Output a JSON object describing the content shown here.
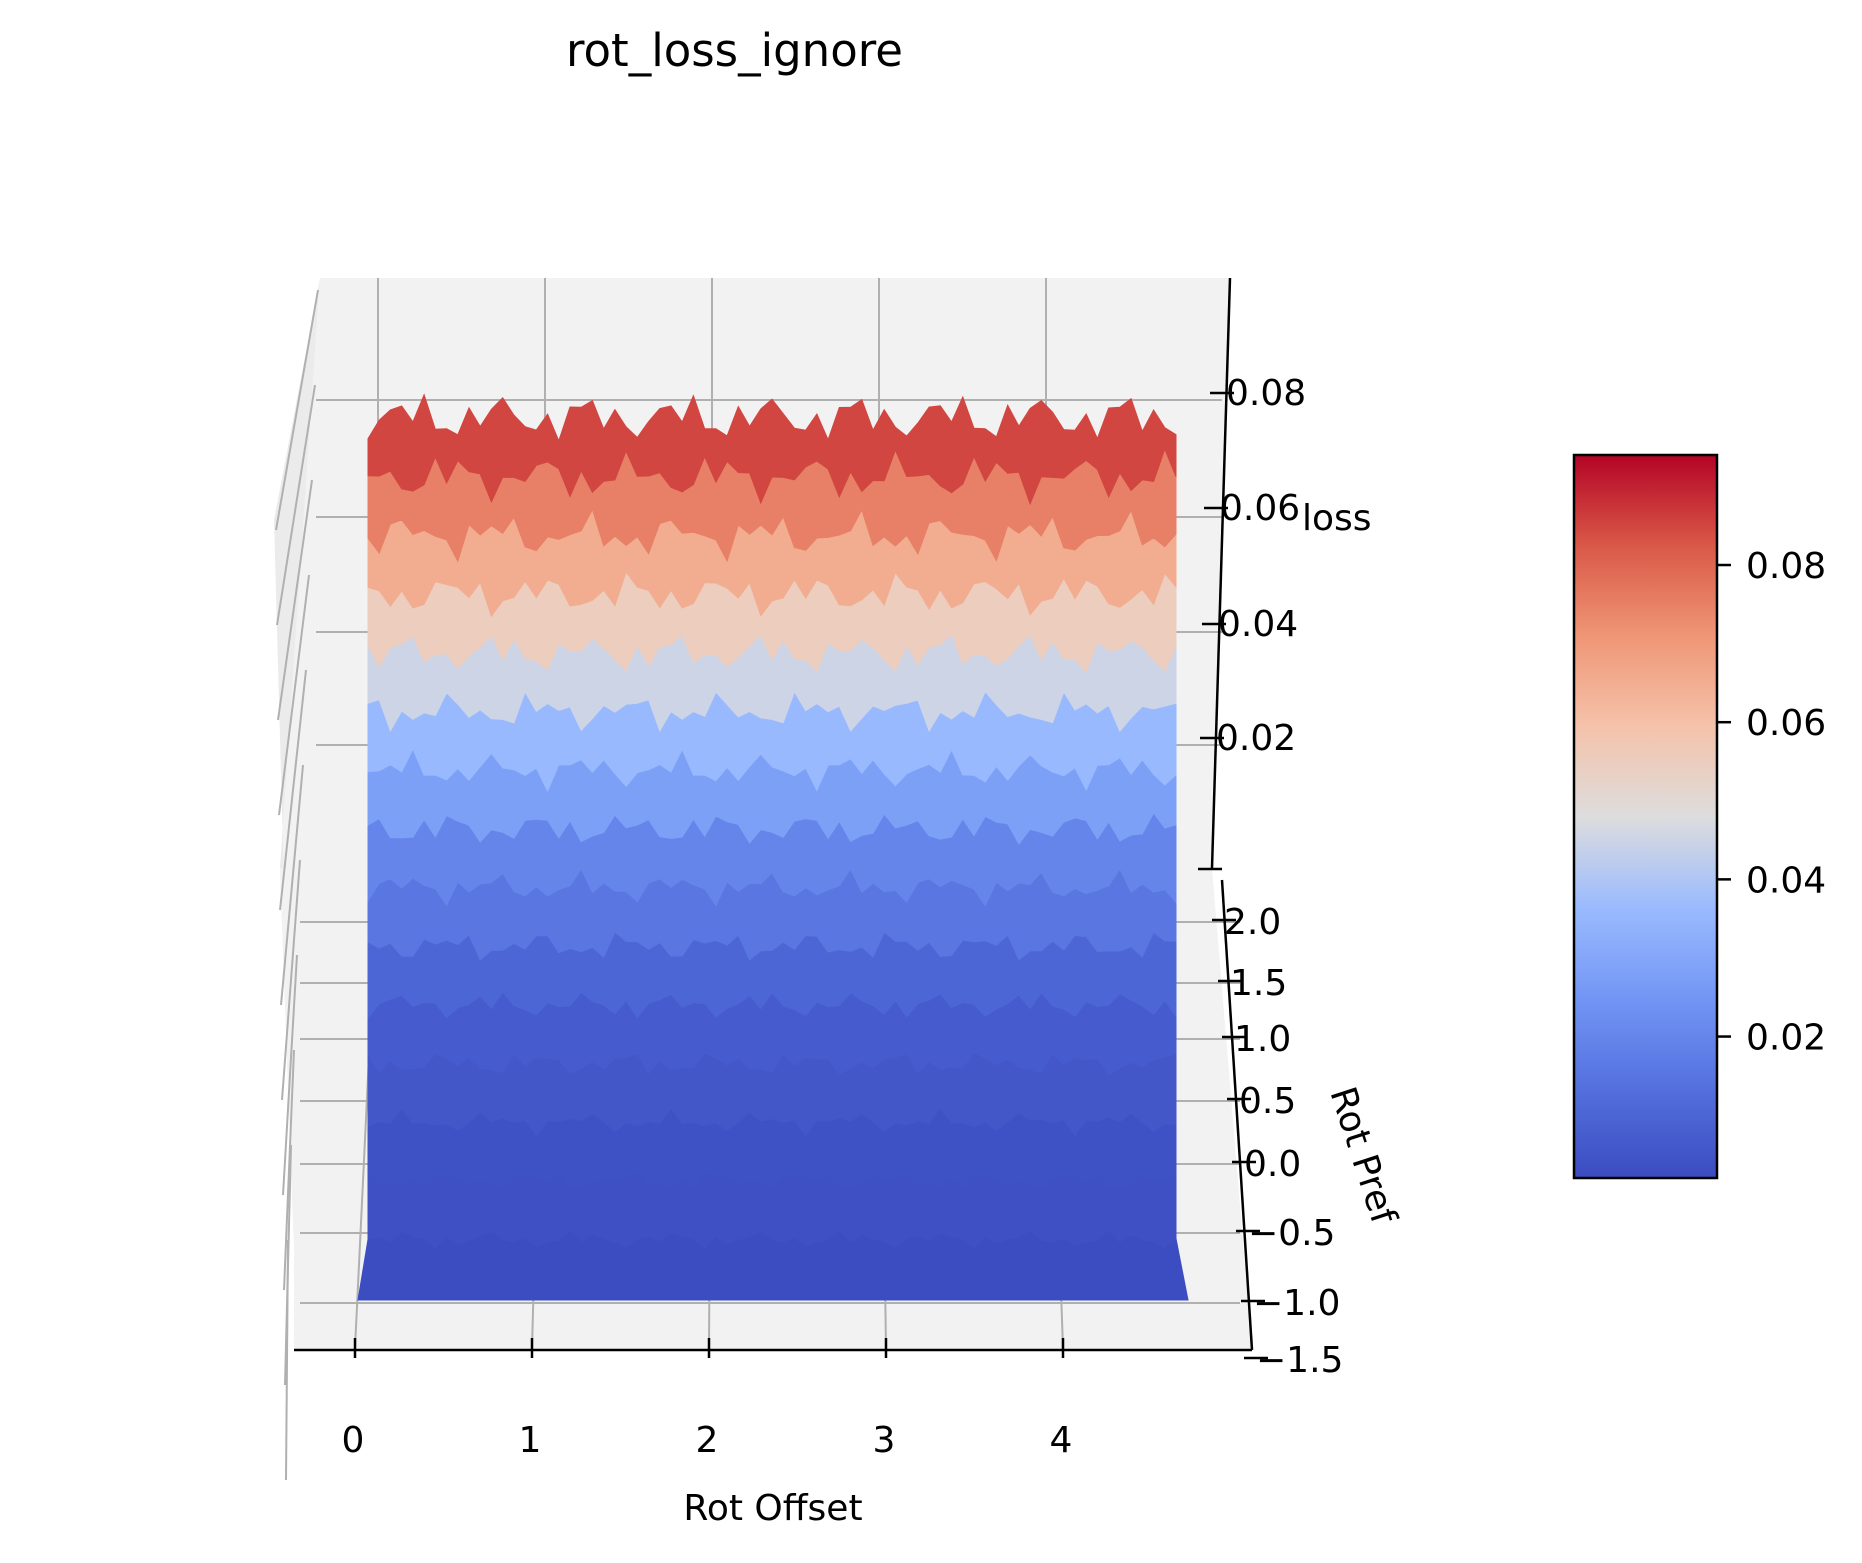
{
  "chart_data": {
    "type": "surface3d",
    "title": "rot_loss_ignore",
    "xlabel": "Rot Offset",
    "ylabel": "Rot Pref",
    "zlabel": "loss",
    "x_ticks": [
      "0",
      "1",
      "2",
      "3",
      "4"
    ],
    "y_ticks": [
      "2.0",
      "1.5",
      "1.0",
      "0.5",
      "0.0",
      "−0.5",
      "−1.0",
      "−1.5"
    ],
    "z_ticks": [
      "0.08",
      "0.06",
      "0.04",
      "0.02"
    ],
    "xlim": [
      0,
      4.6
    ],
    "ylim": [
      -1.5,
      2.0
    ],
    "zlim": [
      0.0,
      0.095
    ],
    "colormap": "coolwarm",
    "colorbar": {
      "ticks": [
        "0.08",
        "0.06",
        "0.04",
        "0.02"
      ],
      "min": 0.002,
      "max": 0.094
    },
    "grid": true,
    "surface_profile": {
      "description": "loss rises from near 0.002 at low Rot Pref to about 0.09 at high Rot Pref, roughly constant across Rot Offset",
      "rot_pref": [
        -1.0,
        -0.5,
        0.0,
        0.5,
        1.0,
        1.5,
        2.0
      ],
      "loss": [
        0.002,
        0.004,
        0.008,
        0.02,
        0.04,
        0.065,
        0.09
      ]
    }
  },
  "colors": {
    "low": "#3b4cc0",
    "mid": "#dddddd",
    "high": "#b40426",
    "pane": "#f2f2f2",
    "grid": "#b0b0b0"
  }
}
